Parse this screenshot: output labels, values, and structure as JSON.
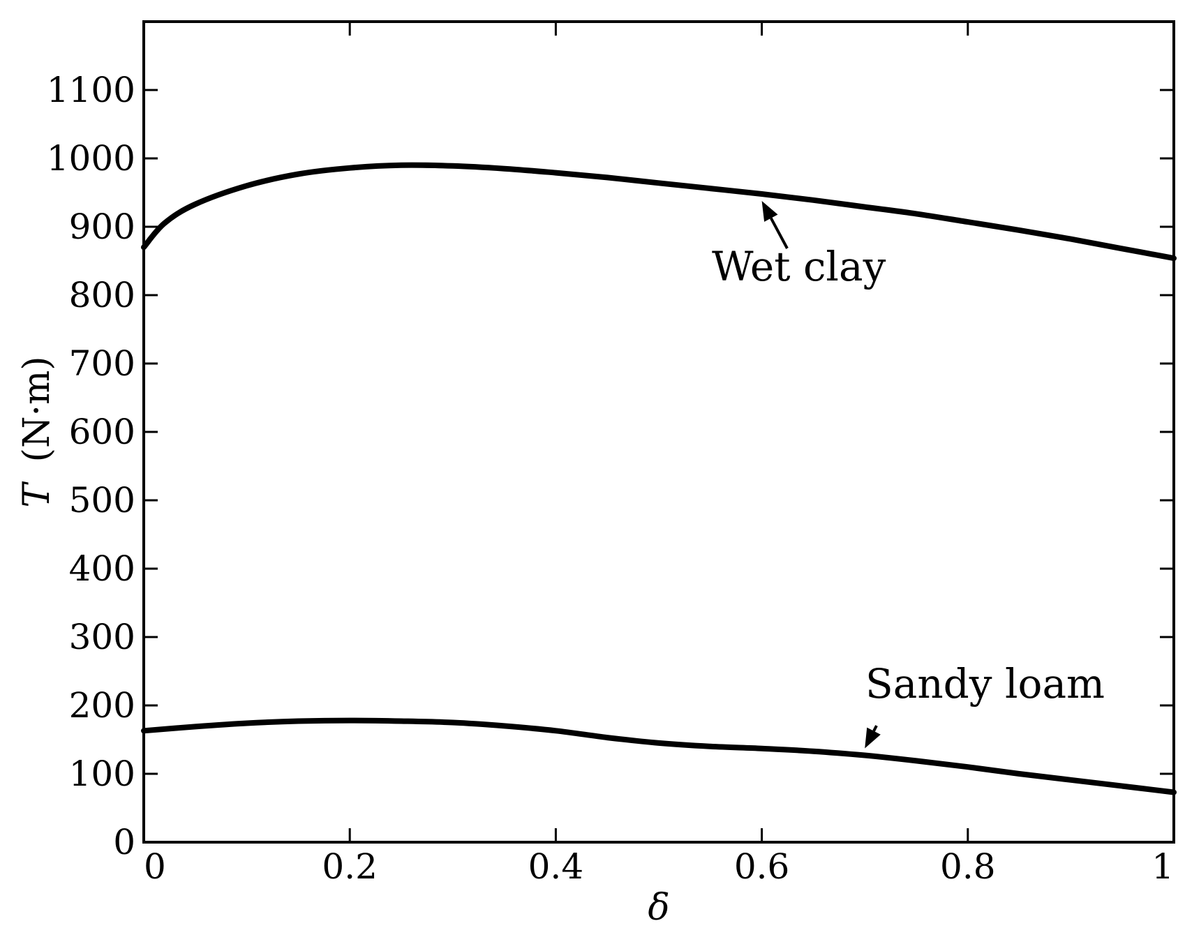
{
  "chart_data": {
    "type": "line",
    "xlabel": "δ",
    "ylabel_var": "T",
    "ylabel_unit": "(N·m)",
    "xlim": [
      0,
      1
    ],
    "ylim": [
      0,
      1200
    ],
    "x_ticks": [
      {
        "value": 0,
        "label": "0"
      },
      {
        "value": 0.2,
        "label": "0.2"
      },
      {
        "value": 0.4,
        "label": "0.4"
      },
      {
        "value": 0.6,
        "label": "0.6"
      },
      {
        "value": 0.8,
        "label": "0.8"
      },
      {
        "value": 1,
        "label": "1"
      }
    ],
    "y_ticks": [
      {
        "value": 0,
        "label": "0"
      },
      {
        "value": 100,
        "label": "100"
      },
      {
        "value": 200,
        "label": "200"
      },
      {
        "value": 300,
        "label": "300"
      },
      {
        "value": 400,
        "label": "400"
      },
      {
        "value": 500,
        "label": "500"
      },
      {
        "value": 600,
        "label": "600"
      },
      {
        "value": 700,
        "label": "700"
      },
      {
        "value": 800,
        "label": "800"
      },
      {
        "value": 900,
        "label": "900"
      },
      {
        "value": 1000,
        "label": "1000"
      },
      {
        "value": 1100,
        "label": "1100"
      }
    ],
    "grid": false,
    "series": [
      {
        "name": "Wet clay",
        "x": [
          0,
          0.02,
          0.05,
          0.1,
          0.15,
          0.2,
          0.25,
          0.3,
          0.35,
          0.4,
          0.45,
          0.5,
          0.55,
          0.6,
          0.65,
          0.7,
          0.75,
          0.8,
          0.85,
          0.9,
          0.95,
          1.0
        ],
        "values": [
          870,
          905,
          933,
          960,
          977,
          986,
          990,
          989,
          985,
          979,
          972,
          964,
          956,
          948,
          939,
          929,
          919,
          907,
          895,
          882,
          868,
          854
        ]
      },
      {
        "name": "Sandy loam",
        "x": [
          0,
          0.05,
          0.1,
          0.15,
          0.2,
          0.25,
          0.3,
          0.35,
          0.4,
          0.45,
          0.5,
          0.55,
          0.6,
          0.65,
          0.7,
          0.75,
          0.8,
          0.85,
          0.9,
          0.95,
          1.0
        ],
        "values": [
          163,
          169,
          174,
          177,
          178,
          177,
          175,
          170,
          163,
          153,
          145,
          140,
          137,
          133,
          127,
          119,
          110,
          100,
          91,
          82,
          73
        ]
      }
    ],
    "annotations": [
      {
        "text": "Wet clay",
        "series": 0,
        "arrow_x": 0.6
      },
      {
        "text": "Sandy loam",
        "series": 1,
        "arrow_x": 0.7
      }
    ]
  }
}
